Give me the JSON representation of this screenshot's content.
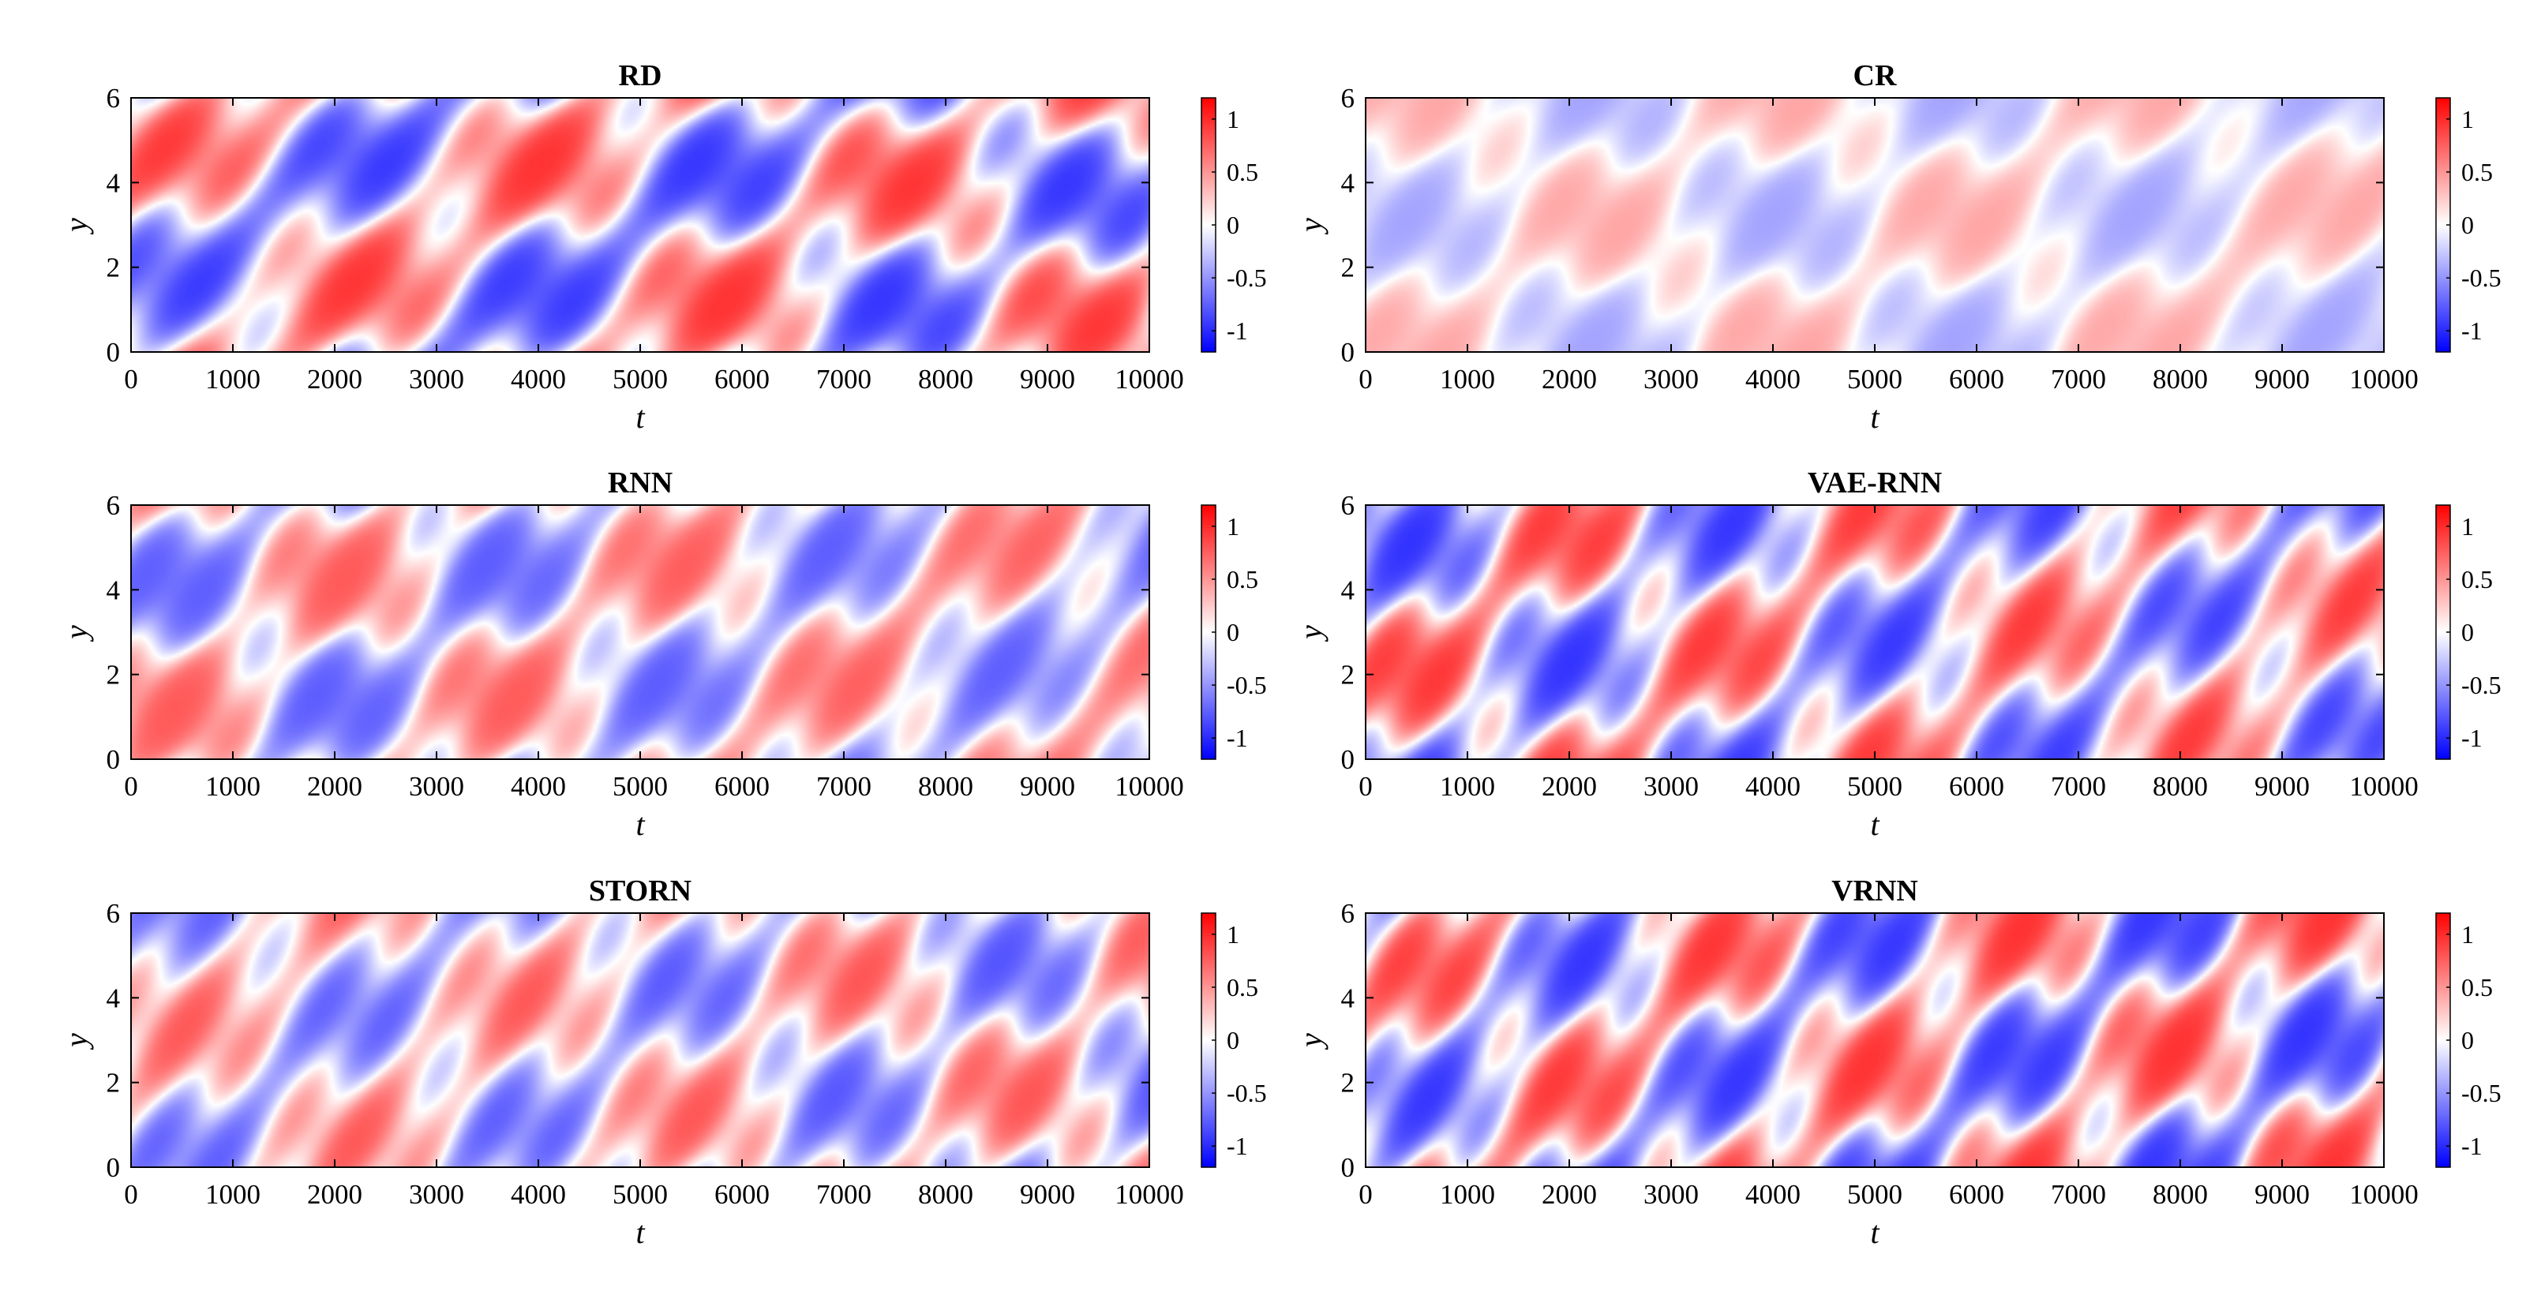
{
  "figure": {
    "colors": {
      "negative": "#0000ff",
      "zero": "#ffffff",
      "positive": "#ff0000",
      "axis": "#000000"
    },
    "colorbar": {
      "range": [
        -1.2,
        1.2
      ],
      "ticks": [
        1,
        0.5,
        0,
        -0.5,
        -1
      ],
      "tick_labels": [
        "1",
        "0.5",
        "0",
        "-0.5",
        "-1"
      ]
    }
  },
  "chart_data": [
    {
      "type": "heatmap",
      "title": "RD",
      "xlabel": "t",
      "ylabel": "y",
      "xlim": [
        0,
        10000
      ],
      "ylim": [
        0,
        6
      ],
      "xticks": [
        0,
        1000,
        2000,
        3000,
        4000,
        5000,
        6000,
        7000,
        8000,
        9000,
        10000
      ],
      "xtick_labels": [
        "0",
        "1000",
        "2000",
        "3000",
        "4000",
        "5000",
        "6000",
        "7000",
        "8000",
        "9000",
        "10000"
      ],
      "yticks": [
        0,
        2,
        4,
        6
      ],
      "ytick_labels": [
        "0",
        "2",
        "4",
        "6"
      ],
      "z_range": [
        -1.2,
        1.2
      ],
      "amplitude": 1.0,
      "pattern": {
        "period_y": 6,
        "drift_speeds": [
          0.0024,
          -0.0018
        ],
        "seed": 1
      },
      "colorbar": true
    },
    {
      "type": "heatmap",
      "title": "CR",
      "xlabel": "t",
      "ylabel": "y",
      "xlim": [
        0,
        10000
      ],
      "ylim": [
        0,
        6
      ],
      "xticks": [
        0,
        1000,
        2000,
        3000,
        4000,
        5000,
        6000,
        7000,
        8000,
        9000,
        10000
      ],
      "xtick_labels": [
        "0",
        "1000",
        "2000",
        "3000",
        "4000",
        "5000",
        "6000",
        "7000",
        "8000",
        "9000",
        "10000"
      ],
      "yticks": [
        0,
        2,
        4,
        6
      ],
      "ytick_labels": [
        "0",
        "2",
        "4",
        "6"
      ],
      "z_range": [
        -1.2,
        1.2
      ],
      "amplitude": 0.45,
      "pattern": {
        "period_y": 6,
        "drift_speeds": [
          0.0026,
          -0.0016
        ],
        "seed": 2
      },
      "colorbar": true
    },
    {
      "type": "heatmap",
      "title": "RNN",
      "xlabel": "t",
      "ylabel": "y",
      "xlim": [
        0,
        10000
      ],
      "ylim": [
        0,
        6
      ],
      "xticks": [
        0,
        1000,
        2000,
        3000,
        4000,
        5000,
        6000,
        7000,
        8000,
        9000,
        10000
      ],
      "xtick_labels": [
        "0",
        "1000",
        "2000",
        "3000",
        "4000",
        "5000",
        "6000",
        "7000",
        "8000",
        "9000",
        "10000"
      ],
      "yticks": [
        0,
        2,
        4,
        6
      ],
      "ytick_labels": [
        "0",
        "2",
        "4",
        "6"
      ],
      "z_range": [
        -1.2,
        1.2
      ],
      "amplitude": 0.8,
      "pattern": {
        "period_y": 6,
        "drift_speeds": [
          0.0028,
          -0.0017
        ],
        "seed": 3
      },
      "colorbar": true
    },
    {
      "type": "heatmap",
      "title": "VAE-RNN",
      "xlabel": "t",
      "ylabel": "y",
      "xlim": [
        0,
        10000
      ],
      "ylim": [
        0,
        6
      ],
      "xticks": [
        0,
        1000,
        2000,
        3000,
        4000,
        5000,
        6000,
        7000,
        8000,
        9000,
        10000
      ],
      "xtick_labels": [
        "0",
        "1000",
        "2000",
        "3000",
        "4000",
        "5000",
        "6000",
        "7000",
        "8000",
        "9000",
        "10000"
      ],
      "yticks": [
        0,
        2,
        4,
        6
      ],
      "ytick_labels": [
        "0",
        "2",
        "4",
        "6"
      ],
      "z_range": [
        -1.2,
        1.2
      ],
      "amplitude": 1.0,
      "pattern": {
        "period_y": 6,
        "drift_speeds": [
          0.003,
          -0.0018
        ],
        "seed": 4
      },
      "colorbar": true
    },
    {
      "type": "heatmap",
      "title": "STORN",
      "xlabel": "t",
      "ylabel": "y",
      "xlim": [
        0,
        10000
      ],
      "ylim": [
        0,
        6
      ],
      "xticks": [
        0,
        1000,
        2000,
        3000,
        4000,
        5000,
        6000,
        7000,
        8000,
        9000,
        10000
      ],
      "xtick_labels": [
        "0",
        "1000",
        "2000",
        "3000",
        "4000",
        "5000",
        "6000",
        "7000",
        "8000",
        "9000",
        "10000"
      ],
      "yticks": [
        0,
        2,
        4,
        6
      ],
      "ytick_labels": [
        "0",
        "2",
        "4",
        "6"
      ],
      "z_range": [
        -1.2,
        1.2
      ],
      "amplitude": 0.85,
      "pattern": {
        "period_y": 6,
        "drift_speeds": [
          0.0029,
          -0.0017
        ],
        "seed": 5
      },
      "colorbar": true
    },
    {
      "type": "heatmap",
      "title": "VRNN",
      "xlabel": "t",
      "ylabel": "y",
      "xlim": [
        0,
        10000
      ],
      "ylim": [
        0,
        6
      ],
      "xticks": [
        0,
        1000,
        2000,
        3000,
        4000,
        5000,
        6000,
        7000,
        8000,
        9000,
        10000
      ],
      "xtick_labels": [
        "0",
        "1000",
        "2000",
        "3000",
        "4000",
        "5000",
        "6000",
        "7000",
        "8000",
        "9000",
        "10000"
      ],
      "yticks": [
        0,
        2,
        4,
        6
      ],
      "ytick_labels": [
        "0",
        "2",
        "4",
        "6"
      ],
      "z_range": [
        -1.2,
        1.2
      ],
      "amplitude": 1.0,
      "pattern": {
        "period_y": 6,
        "drift_speeds": [
          0.0031,
          -0.0019
        ],
        "seed": 6
      },
      "colorbar": true
    }
  ]
}
